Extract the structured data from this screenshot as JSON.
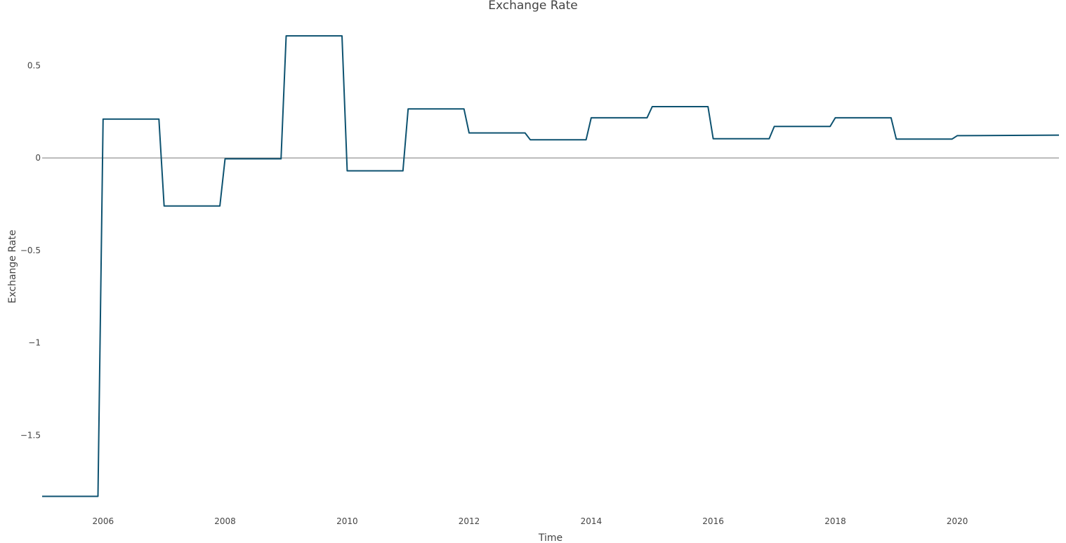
{
  "chart_data": {
    "type": "line",
    "title": "Exchange Rate",
    "xlabel": "Time",
    "ylabel": "Exchange Rate",
    "x_axis_type": "date",
    "xlim": [
      "2005-01-01",
      "2021-09-01"
    ],
    "ylim": [
      -1.87,
      0.74
    ],
    "grid": false,
    "zero_line": true,
    "legend": "none",
    "x_ticks": [
      {
        "value": "2006-01-01",
        "label": "2006"
      },
      {
        "value": "2008-01-01",
        "label": "2008"
      },
      {
        "value": "2010-01-01",
        "label": "2010"
      },
      {
        "value": "2012-01-01",
        "label": "2012"
      },
      {
        "value": "2014-01-01",
        "label": "2014"
      },
      {
        "value": "2016-01-01",
        "label": "2016"
      },
      {
        "value": "2018-01-01",
        "label": "2018"
      },
      {
        "value": "2020-01-01",
        "label": "2020"
      }
    ],
    "y_ticks": [
      {
        "value": 0.5,
        "label": "0.5"
      },
      {
        "value": 0,
        "label": "0"
      },
      {
        "value": -0.5,
        "label": "−0.5"
      },
      {
        "value": -1,
        "label": "−1"
      },
      {
        "value": -1.5,
        "label": "−1.5"
      }
    ],
    "series": [
      {
        "color": "#0d5270",
        "x": [
          "2005-01-01",
          "2005-12-01",
          "2006-01-01",
          "2006-12-01",
          "2007-01-01",
          "2007-12-01",
          "2008-01-01",
          "2008-12-01",
          "2009-01-01",
          "2009-12-01",
          "2010-01-01",
          "2010-12-01",
          "2011-01-01",
          "2011-12-01",
          "2012-01-01",
          "2012-12-01",
          "2013-01-01",
          "2013-12-01",
          "2014-01-01",
          "2014-12-01",
          "2015-01-01",
          "2015-12-01",
          "2016-01-01",
          "2016-12-01",
          "2017-01-01",
          "2017-12-01",
          "2018-01-01",
          "2018-12-01",
          "2019-01-01",
          "2019-12-01",
          "2020-01-01",
          "2021-09-01"
        ],
        "y": [
          -1.83,
          -1.83,
          0.21,
          0.21,
          -0.26,
          -0.26,
          -0.005,
          -0.005,
          0.66,
          0.66,
          -0.07,
          -0.07,
          0.265,
          0.265,
          0.135,
          0.135,
          0.098,
          0.098,
          0.217,
          0.217,
          0.277,
          0.277,
          0.104,
          0.104,
          0.17,
          0.17,
          0.217,
          0.217,
          0.102,
          0.102,
          0.12,
          0.123
        ]
      }
    ],
    "colors": {
      "line": "#0d5270",
      "zero_line": "#7a7a7a",
      "text": "#444444"
    }
  }
}
